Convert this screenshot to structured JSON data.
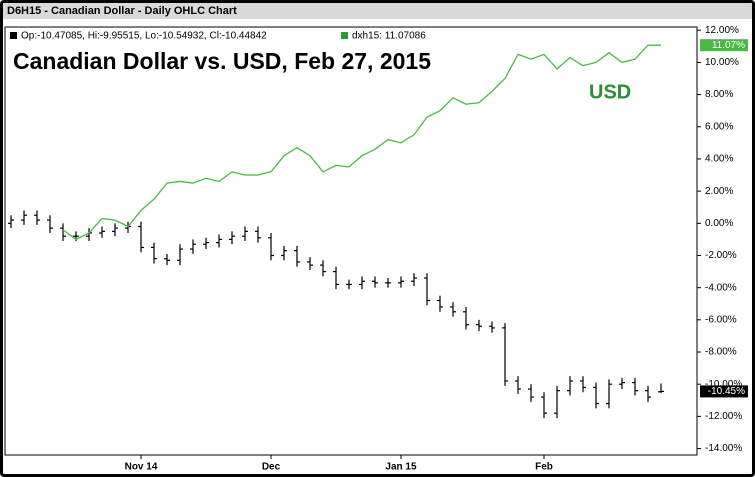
{
  "header": {
    "title": "D6H15 - Canadian Dollar - Daily OHLC Chart",
    "ohlc_readout": "Op:-10.47085, Hi:-9.95515, Lo:-10.54932, Cl:-10.44842",
    "overlay_readout": "dxh15: 11.07086"
  },
  "chart_data": {
    "type": "ohlc",
    "title": "Canadian Dollar vs. USD, Feb 27, 2015",
    "annotation": "USD",
    "categories": [
      null,
      null,
      null,
      null,
      null,
      null,
      null,
      null,
      null,
      null,
      "Nov 14",
      null,
      null,
      null,
      null,
      null,
      null,
      null,
      null,
      null,
      "Dec",
      null,
      null,
      null,
      null,
      null,
      null,
      null,
      null,
      null,
      "Jan 15",
      null,
      null,
      null,
      null,
      null,
      null,
      null,
      null,
      null,
      null,
      "Feb",
      null,
      null,
      null,
      null,
      null,
      null,
      null,
      null,
      null
    ],
    "series": [
      {
        "type": "ohlc",
        "color": "#000000",
        "open": [
          0.0,
          0.2,
          0.5,
          0.2,
          -0.3,
          -0.8,
          -0.8,
          -0.6,
          -0.5,
          -0.3,
          -0.2,
          -1.5,
          -2.2,
          -2.3,
          -1.6,
          -1.3,
          -1.2,
          -1.0,
          -0.8,
          -0.5,
          -0.9,
          -2.0,
          -1.7,
          -2.4,
          -2.6,
          -3.0,
          -3.8,
          -3.8,
          -3.6,
          -3.7,
          -3.7,
          -3.6,
          -3.4,
          -4.8,
          -5.2,
          -5.5,
          -6.3,
          -6.4,
          -6.5,
          -9.8,
          -10.3,
          -10.8,
          -11.8,
          -10.4,
          -9.8,
          -10.2,
          -11.2,
          -10.0,
          -9.9,
          -10.4,
          -10.47085
        ],
        "high": [
          0.5,
          0.8,
          0.8,
          0.5,
          0.0,
          -0.5,
          -0.3,
          -0.2,
          0.0,
          0.1,
          0.1,
          -1.2,
          -1.9,
          -1.3,
          -1.0,
          -0.9,
          -0.7,
          -0.5,
          -0.2,
          -0.2,
          -0.6,
          -1.4,
          -1.4,
          -2.1,
          -2.3,
          -2.7,
          -3.5,
          -3.3,
          -3.3,
          -3.4,
          -3.3,
          -3.1,
          -3.1,
          -4.5,
          -4.9,
          -5.2,
          -6.0,
          -6.1,
          -6.2,
          -9.5,
          -10.0,
          -10.5,
          -10.1,
          -9.5,
          -9.5,
          -9.9,
          -9.7,
          -9.6,
          -9.6,
          -10.1,
          -9.95515
        ],
        "low": [
          -0.3,
          -0.1,
          -0.1,
          -0.6,
          -1.1,
          -1.1,
          -1.1,
          -0.9,
          -0.8,
          -0.6,
          -1.8,
          -2.5,
          -2.6,
          -2.6,
          -1.9,
          -1.6,
          -1.5,
          -1.3,
          -1.1,
          -1.2,
          -2.3,
          -2.3,
          -2.7,
          -2.9,
          -3.3,
          -4.1,
          -4.1,
          -4.1,
          -4.0,
          -4.0,
          -4.0,
          -3.9,
          -5.1,
          -5.5,
          -5.8,
          -6.6,
          -6.7,
          -6.8,
          -10.1,
          -10.6,
          -11.1,
          -12.1,
          -12.1,
          -10.7,
          -10.5,
          -11.5,
          -11.5,
          -10.3,
          -10.7,
          -11.1,
          -10.54932
        ],
        "close": [
          0.2,
          0.5,
          0.2,
          -0.3,
          -0.8,
          -0.8,
          -0.6,
          -0.5,
          -0.3,
          -0.2,
          -1.5,
          -2.2,
          -2.3,
          -1.6,
          -1.3,
          -1.2,
          -1.0,
          -0.8,
          -0.5,
          -0.9,
          -2.0,
          -1.7,
          -2.4,
          -2.6,
          -3.0,
          -3.8,
          -3.8,
          -3.6,
          -3.7,
          -3.7,
          -3.6,
          -3.4,
          -4.8,
          -5.2,
          -5.5,
          -6.3,
          -6.4,
          -6.5,
          -9.8,
          -10.3,
          -10.8,
          -11.8,
          -10.4,
          -9.8,
          -10.2,
          -11.2,
          -10.0,
          -9.9,
          -10.4,
          -10.8,
          -10.44842
        ],
        "last_value_label": "-10.45%"
      },
      {
        "type": "line",
        "color": "#4cb848",
        "values": [
          null,
          null,
          null,
          null,
          -0.4,
          -1.0,
          -0.6,
          0.3,
          0.2,
          -0.2,
          0.8,
          1.5,
          2.5,
          2.6,
          2.5,
          2.8,
          2.6,
          3.2,
          3.0,
          3.0,
          3.2,
          4.2,
          4.7,
          4.2,
          3.2,
          3.6,
          3.5,
          4.2,
          4.6,
          5.2,
          5.0,
          5.5,
          6.6,
          7.0,
          7.8,
          7.4,
          7.5,
          8.2,
          9.0,
          10.5,
          10.2,
          10.5,
          9.6,
          10.3,
          9.8,
          10.0,
          10.6,
          10.0,
          10.2,
          11.07,
          11.07086
        ],
        "last_value_label": "11.07%"
      }
    ],
    "ylim": [
      -14.4,
      12.2
    ],
    "yticks": [
      {
        "value": 12,
        "label": "12.00%"
      },
      {
        "value": 10,
        "label": "10.00%"
      },
      {
        "value": 8,
        "label": "8.00%"
      },
      {
        "value": 6,
        "label": "6.00%"
      },
      {
        "value": 4,
        "label": "4.00%"
      },
      {
        "value": 2,
        "label": "2.00%"
      },
      {
        "value": 0,
        "label": "0.00%"
      },
      {
        "value": -2,
        "label": "-2.00%"
      },
      {
        "value": -4,
        "label": "-4.00%"
      },
      {
        "value": -6,
        "label": "-6.00%"
      },
      {
        "value": -8,
        "label": "-8.00%"
      },
      {
        "value": -10,
        "label": "-10.00%"
      },
      {
        "value": -12,
        "label": "-12.00%"
      },
      {
        "value": -14,
        "label": "-14.00%"
      }
    ],
    "grid": false
  }
}
